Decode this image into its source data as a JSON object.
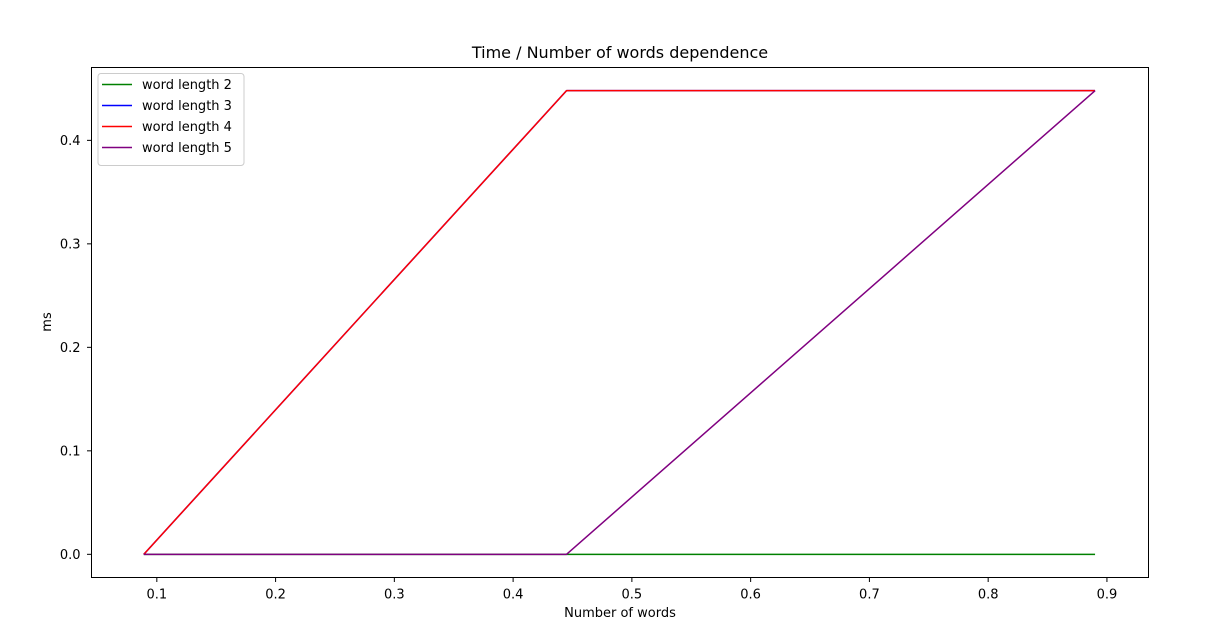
{
  "chart_data": {
    "type": "line",
    "title": "Time / Number of words dependence",
    "xlabel": "Number of words",
    "ylabel": "ms",
    "xlim": [
      0.045,
      0.935
    ],
    "ylim": [
      -0.0224,
      0.4704
    ],
    "xticks": [
      0.1,
      0.2,
      0.3,
      0.4,
      0.5,
      0.6,
      0.7,
      0.8,
      0.9
    ],
    "xtick_labels": [
      "0.1",
      "0.2",
      "0.3",
      "0.4",
      "0.5",
      "0.6",
      "0.7",
      "0.8",
      "0.9"
    ],
    "yticks": [
      0.0,
      0.1,
      0.2,
      0.3,
      0.4
    ],
    "ytick_labels": [
      "0.0",
      "0.1",
      "0.2",
      "0.3",
      "0.4"
    ],
    "grid": false,
    "legend_position": "top-left",
    "series": [
      {
        "name": "word length 2",
        "color": "#008000",
        "x": [
          0.089,
          0.445,
          0.89
        ],
        "y": [
          0.0,
          0.0,
          0.0
        ]
      },
      {
        "name": "word length 3",
        "color": "#0000ff",
        "x": [
          0.089,
          0.445,
          0.89
        ],
        "y": [
          0.0,
          0.448,
          0.448
        ]
      },
      {
        "name": "word length 4",
        "color": "#ff0000",
        "x": [
          0.089,
          0.445,
          0.89
        ],
        "y": [
          0.0,
          0.448,
          0.448
        ]
      },
      {
        "name": "word length 5",
        "color": "#800080",
        "x": [
          0.089,
          0.445,
          0.89
        ],
        "y": [
          0.0,
          0.0,
          0.448
        ]
      }
    ]
  }
}
